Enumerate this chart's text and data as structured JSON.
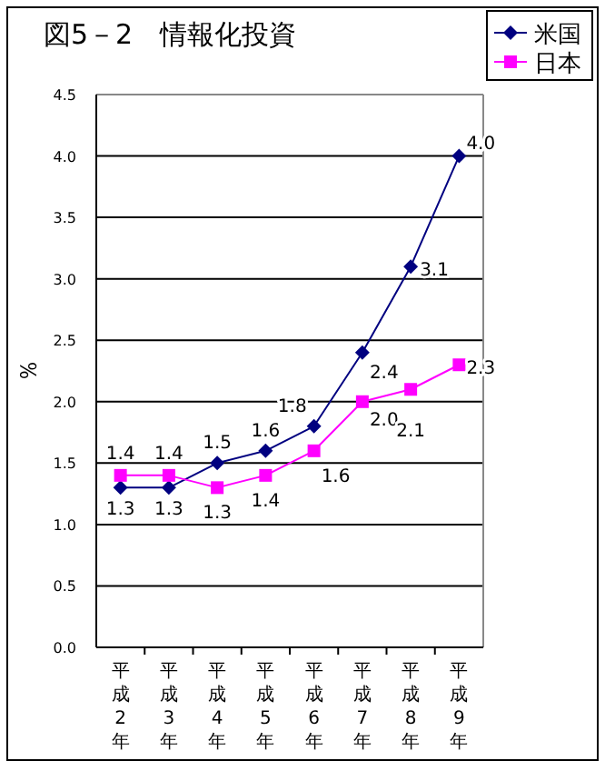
{
  "chart_data": {
    "type": "line",
    "title": "図5－2　情報化投資",
    "ylabel": "％",
    "categories": [
      "平成2年",
      "平成3年",
      "平成4年",
      "平成5年",
      "平成6年",
      "平成7年",
      "平成8年",
      "平成9年"
    ],
    "series": [
      {
        "name": "米国",
        "color": "#000080",
        "marker": "diamond",
        "values": [
          1.3,
          1.3,
          1.5,
          1.6,
          1.8,
          2.4,
          3.1,
          4.0
        ],
        "value_labels": [
          "1.3",
          "1.3",
          "1.5",
          "1.6",
          "1.8",
          "2.4",
          "3.1",
          "4.0"
        ]
      },
      {
        "name": "日本",
        "color": "#ff00ff",
        "marker": "square",
        "values": [
          1.4,
          1.4,
          1.3,
          1.4,
          1.6,
          2.0,
          2.1,
          2.3
        ],
        "value_labels": [
          "1.4",
          "1.4",
          "1.3",
          "1.4",
          "1.6",
          "2.0",
          "2.1",
          "2.3"
        ]
      }
    ],
    "ylim": [
      0,
      4.5
    ],
    "yticks": [
      {
        "value": 0,
        "label": "0.0"
      },
      {
        "value": 0.5,
        "label": "0.5"
      },
      {
        "value": 1,
        "label": "1.0"
      },
      {
        "value": 1.5,
        "label": "1.5"
      },
      {
        "value": 2,
        "label": "2.0"
      },
      {
        "value": 2.5,
        "label": "2.5"
      },
      {
        "value": 3,
        "label": "3.0"
      },
      {
        "value": 3.5,
        "label": "3.5"
      },
      {
        "value": 4,
        "label": "4.0"
      },
      {
        "value": 4.5,
        "label": "4.5"
      }
    ],
    "grid": "y",
    "legend": "top right",
    "line_style": "solid"
  }
}
